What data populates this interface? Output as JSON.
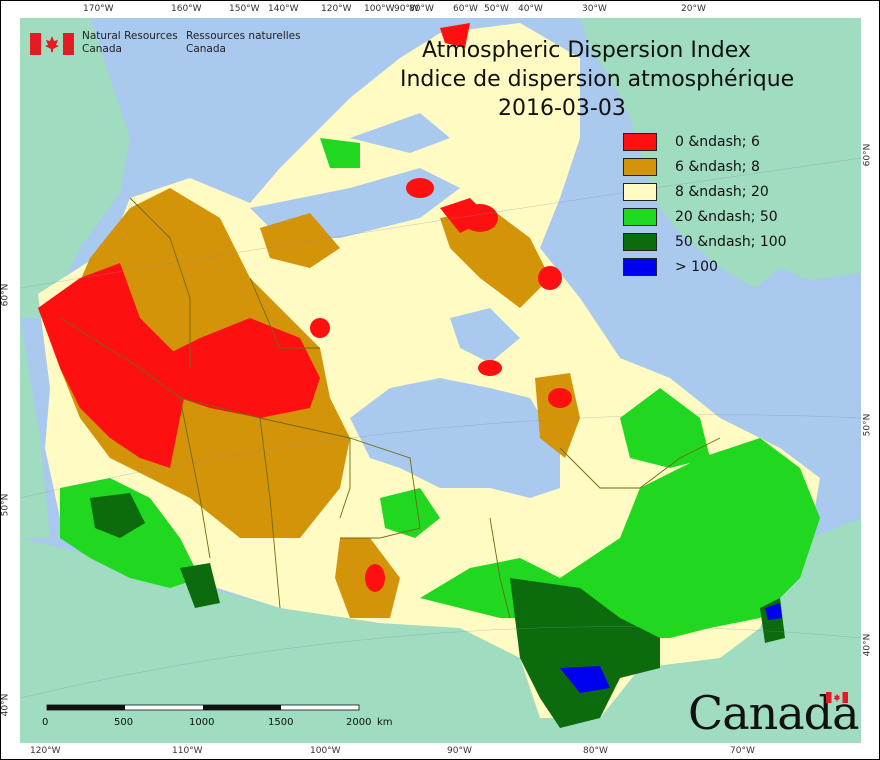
{
  "map": {
    "title_en": "Atmospheric Dispersion Index",
    "title_fr": "Indice de dispersion atmosphérique",
    "date": "2016-03-03"
  },
  "agency": {
    "name_en_line1": "Natural Resources",
    "name_en_line2": "Canada",
    "name_fr_line1": "Ressources naturelles",
    "name_fr_line2": "Canada"
  },
  "wordmark": "Canada",
  "legend": [
    {
      "label": "0 &ndash; 6",
      "color": "#ff1010"
    },
    {
      "label": "6 &ndash; 8",
      "color": "#d4940a"
    },
    {
      "label": "8 &ndash; 20",
      "color": "#fffbc2"
    },
    {
      "label": "20 &ndash; 50",
      "color": "#1fd81f"
    },
    {
      "label": "50 &ndash; 100",
      "color": "#0c6b0c"
    },
    {
      "label": "> 100",
      "color": "#0000f0"
    }
  ],
  "graticule": {
    "top": [
      "170°W",
      "160°W",
      "150°W",
      "140°W",
      "120°W",
      "100°W",
      "90°W",
      "80°W",
      "60°W",
      "50°W",
      "40°W",
      "30°W",
      "20°W"
    ],
    "bottom": [
      "120°W",
      "110°W",
      "100°W",
      "90°W",
      "80°W",
      "70°W"
    ],
    "left": [
      "60°N",
      "50°N",
      "40°N"
    ],
    "right": [
      "60°N",
      "50°N",
      "40°N"
    ]
  },
  "scale": {
    "labels": [
      "0",
      "500",
      "1000",
      "1500",
      "2000"
    ],
    "unit": "km"
  },
  "colors": {
    "ocean": "#a9c9ee",
    "foreign_land": "#9fdcc0",
    "border": "#6f6a10"
  }
}
